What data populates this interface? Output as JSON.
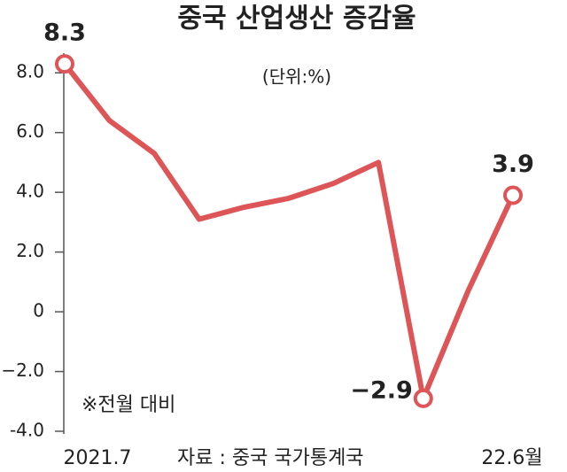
{
  "chart_data": {
    "type": "line",
    "title": "중국 산업생산 증감율",
    "subtitle": "(단위:%)",
    "annotations": [
      "※전월 대비",
      "자료 : 중국 국가통계국"
    ],
    "categories": [
      "2021.7",
      null,
      null,
      null,
      null,
      null,
      null,
      null,
      null,
      null,
      "22.6월"
    ],
    "series": [
      {
        "name": "산업생산 증감율",
        "color": "#de5558",
        "values": [
          8.3,
          6.4,
          5.3,
          3.1,
          3.5,
          3.8,
          4.3,
          5.0,
          -2.9,
          0.7,
          3.9
        ],
        "value_labels": [
          "8.3",
          null,
          null,
          null,
          null,
          null,
          null,
          null,
          "−2.9",
          null,
          "3.9"
        ]
      }
    ],
    "ylim": [
      -4,
      8.6
    ],
    "yticks": [
      {
        "value": -4,
        "label": "-4.0"
      },
      {
        "value": -2,
        "label": "−2.0"
      },
      0,
      {
        "value": 2,
        "label": "2.0"
      },
      {
        "value": 4,
        "label": "4.0"
      },
      {
        "value": 6,
        "label": "6.0"
      },
      {
        "value": 8,
        "label": "8.0"
      }
    ]
  }
}
